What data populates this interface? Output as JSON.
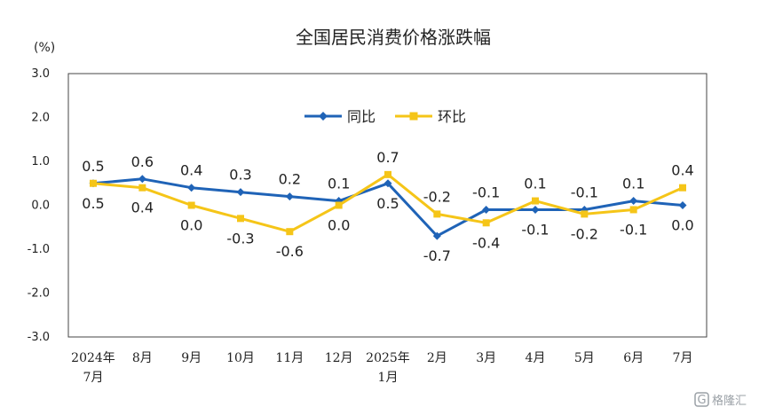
{
  "chart_data": {
    "type": "line",
    "title": "全国居民消费价格涨跌幅",
    "unit_label": "(%)",
    "categories": [
      [
        "2024年",
        "7月"
      ],
      [
        "8月"
      ],
      [
        "9月"
      ],
      [
        "10月"
      ],
      [
        "11月"
      ],
      [
        "12月"
      ],
      [
        "2025年",
        "1月"
      ],
      [
        "2月"
      ],
      [
        "3月"
      ],
      [
        "4月"
      ],
      [
        "5月"
      ],
      [
        "6月"
      ],
      [
        "7月"
      ]
    ],
    "y_ticks": [
      "3.0",
      "2.0",
      "1.0",
      "0.0",
      "-1.0",
      "-2.0",
      "-3.0"
    ],
    "ylim": [
      -3.0,
      3.0
    ],
    "grid": false,
    "legend_position": "top-center",
    "series": [
      {
        "name": "同比",
        "color": "#1F63B7",
        "marker": "diamond",
        "values": [
          0.5,
          0.6,
          0.4,
          0.3,
          0.2,
          0.1,
          0.5,
          -0.7,
          -0.1,
          -0.1,
          -0.1,
          0.1,
          0.0
        ],
        "labels": [
          "0.5",
          "0.6",
          "0.4",
          "0.3",
          "0.2",
          "0.1",
          "0.5",
          "-0.7",
          "-0.1",
          "-0.1",
          "-0.1",
          "0.1",
          "0.0"
        ]
      },
      {
        "name": "环比",
        "color": "#F5C518",
        "marker": "square",
        "values": [
          0.5,
          0.4,
          0.0,
          -0.3,
          -0.6,
          0.0,
          0.7,
          -0.2,
          -0.4,
          0.1,
          -0.2,
          -0.1,
          0.4
        ],
        "labels": [
          "0.5",
          "0.4",
          "0.0",
          "-0.3",
          "-0.6",
          "0.0",
          "0.7",
          "-0.2",
          "-0.4",
          "0.1",
          "-0.2",
          "-0.1",
          "0.4"
        ]
      }
    ]
  },
  "watermark": {
    "text": "格隆汇",
    "icon": "g-logo-icon"
  }
}
